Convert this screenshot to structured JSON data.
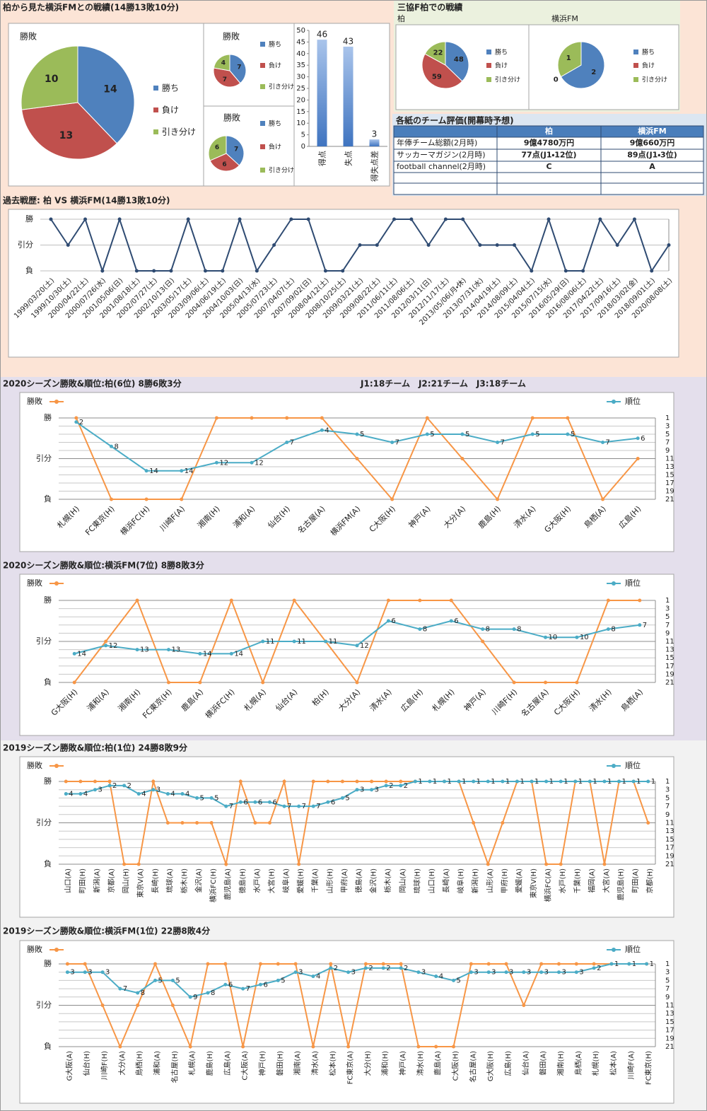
{
  "headings": {
    "record": "柏から見た横浜FMとの戦績(14勝13敗10分)",
    "venue": "三協F柏での戦績",
    "venue_labels": [
      "柏",
      "横浜FM"
    ]
  },
  "table": {
    "title": "各紙のチーム評価(開幕時予想)",
    "header": [
      "柏",
      "横浜FM"
    ],
    "rows": [
      [
        "年俸チーム総額(2月時)",
        "9億4780万円",
        "9億660万円"
      ],
      [
        "サッカーマガジン(2月時)",
        "77点(J1・12位)",
        "89点(J1・3位)"
      ],
      [
        "football channel(2月時)",
        "C",
        "A"
      ]
    ]
  },
  "chart_data": [
    {
      "type": "pie",
      "title": "勝敗",
      "categories": [
        "勝ち",
        "負け",
        "引き分け"
      ],
      "values": [
        14,
        13,
        10
      ],
      "colors": [
        "#4f81bd",
        "#c0504d",
        "#9bbb59"
      ]
    },
    {
      "type": "pie",
      "title": "勝敗",
      "categories": [
        "勝ち",
        "負け",
        "引き分け"
      ],
      "values": [
        7,
        7,
        4
      ],
      "colors": [
        "#4f81bd",
        "#c0504d",
        "#9bbb59"
      ]
    },
    {
      "type": "pie",
      "title": "勝敗",
      "categories": [
        "勝ち",
        "負け",
        "引き分け"
      ],
      "values": [
        7,
        6,
        6
      ],
      "colors": [
        "#4f81bd",
        "#c0504d",
        "#9bbb59"
      ]
    },
    {
      "type": "bar",
      "categories": [
        "得点",
        "失点",
        "得失点差"
      ],
      "values": [
        46,
        43,
        3
      ],
      "color": "#4f81bd",
      "ylim": [
        0,
        50
      ],
      "yticks": [
        0,
        5,
        10,
        15,
        20,
        25,
        30,
        35,
        40,
        45,
        50
      ]
    },
    {
      "type": "pie",
      "categories": [
        "勝ち",
        "負け",
        "引き分け"
      ],
      "values": [
        48,
        59,
        22
      ],
      "colors": [
        "#4f81bd",
        "#c0504d",
        "#9bbb59"
      ]
    },
    {
      "type": "pie",
      "categories": [
        "勝ち",
        "負け",
        "引き分け"
      ],
      "values": [
        2,
        0,
        1
      ],
      "colors": [
        "#4f81bd",
        "#c0504d",
        "#9bbb59"
      ]
    },
    {
      "type": "line",
      "title": "過去戦歴: 柏 VS 横浜FM(14勝13敗10分)",
      "categories": [
        "1999/03/20(土)",
        "1999/10/30(土)",
        "2000/04/22(土)",
        "2000/07/26(水)",
        "2001/05/06(日)",
        "2001/08/18(土)",
        "2002/07/27(土)",
        "2002/10/13(日)",
        "2003/05/17(土)",
        "2003/09/06(土)",
        "2004/06/19(土)",
        "2004/10/03(日)",
        "2005/04/13(水)",
        "2005/07/23(土)",
        "2007/04/07(土)",
        "2007/09/02(日)",
        "2008/04/12(土)",
        "2008/10/25(土)",
        "2009/03/21(土)",
        "2009/08/22(土)",
        "2011/06/11(土)",
        "2011/08/06(土)",
        "2012/03/11(日)",
        "2012/11/17(土)",
        "2013/05/06(月・休)",
        "2013/07/31(水)",
        "2014/04/19(土)",
        "2014/08/09(土)",
        "2015/04/04(土)",
        "2015/07/15(水)",
        "2016/05/29(日)",
        "2016/08/06(土)",
        "2017/04/22(土)",
        "2017/09/16(土)",
        "2018/03/02(金)",
        "2018/09/01(土)",
        "2020/08/08(土)"
      ],
      "values": [
        1,
        0,
        1,
        -1,
        1,
        -1,
        -1,
        -1,
        1,
        -1,
        -1,
        1,
        -1,
        0,
        1,
        1,
        -1,
        -1,
        0,
        0,
        1,
        1,
        0,
        1,
        1,
        0,
        0,
        0,
        -1,
        1,
        -1,
        -1,
        1,
        0,
        1,
        -1,
        0
      ],
      "color": "#2f4b72",
      "ylim": [
        -1,
        1
      ],
      "yticks": [
        {
          "value": -1,
          "label": "負"
        },
        {
          "value": 0,
          "label": "引分"
        },
        {
          "value": 1,
          "label": "勝"
        }
      ],
      "grid": true
    },
    {
      "type": "line",
      "title": "2020シーズン勝敗&順位:柏(6位) 8勝6敗3分",
      "annotation": "J1:18チーム　J2:21チーム　J3:18チーム",
      "categories": [
        "札幌(H)",
        "FC東京(H)",
        "横浜FC(H)",
        "川崎F(A)",
        "湘南(H)",
        "浦和(A)",
        "仙台(H)",
        "名古屋(A)",
        "横浜FM(A)",
        "C大阪(H)",
        "神戸(A)",
        "大分(A)",
        "鹿島(H)",
        "清水(A)",
        "G大阪(H)",
        "鳥栖(A)",
        "広島(H)"
      ],
      "series": [
        {
          "name": "勝敗",
          "color": "#f79646",
          "values": [
            1,
            -1,
            -1,
            -1,
            1,
            1,
            1,
            1,
            0,
            -1,
            1,
            0,
            -1,
            1,
            1,
            -1,
            0
          ]
        },
        {
          "name": "順位",
          "color": "#4bacc6",
          "axis": "y2",
          "values": [
            2,
            8,
            14,
            14,
            12,
            12,
            7,
            4,
            5,
            7,
            5,
            5,
            7,
            5,
            5,
            7,
            6
          ]
        }
      ],
      "ylim": [
        -1,
        1
      ],
      "yticks": [
        {
          "value": -1,
          "label": "負"
        },
        {
          "value": 0,
          "label": "引分"
        },
        {
          "value": 1,
          "label": "勝"
        }
      ],
      "y2lim": [
        21,
        1
      ],
      "y2ticks": [
        1,
        3,
        5,
        7,
        9,
        11,
        13,
        15,
        17,
        19,
        21
      ],
      "grid": true,
      "legend": "top"
    },
    {
      "type": "line",
      "title": "2020シーズン勝敗&順位:横浜FM(7位) 8勝8敗3分",
      "categories": [
        "G大阪(H)",
        "浦和(A)",
        "湘南(H)",
        "FC東京(H)",
        "鹿島(A)",
        "横浜FC(H)",
        "札幌(A)",
        "仙台(A)",
        "柏(H)",
        "大分(A)",
        "清水(A)",
        "広島(H)",
        "札幌(H)",
        "神戸(A)",
        "川崎F(H)",
        "名古屋(A)",
        "C大阪(H)",
        "清水(H)",
        "鳥栖(A)"
      ],
      "series": [
        {
          "name": "勝敗",
          "color": "#f79646",
          "values": [
            -1,
            0,
            1,
            -1,
            -1,
            1,
            -1,
            1,
            0,
            -1,
            1,
            1,
            1,
            0,
            -1,
            -1,
            -1,
            1,
            1
          ]
        },
        {
          "name": "順位",
          "color": "#4bacc6",
          "axis": "y2",
          "values": [
            14,
            12,
            13,
            13,
            14,
            14,
            11,
            11,
            11,
            12,
            6,
            8,
            6,
            8,
            8,
            10,
            10,
            8,
            7
          ]
        }
      ],
      "ylim": [
        -1,
        1
      ],
      "yticks": [
        {
          "value": -1,
          "label": "負"
        },
        {
          "value": 0,
          "label": "引分"
        },
        {
          "value": 1,
          "label": "勝"
        }
      ],
      "y2lim": [
        21,
        1
      ],
      "y2ticks": [
        1,
        3,
        5,
        7,
        9,
        11,
        13,
        15,
        17,
        19,
        21
      ],
      "grid": true,
      "legend": "top"
    },
    {
      "type": "line",
      "title": "2019シーズン勝敗&順位:柏(1位) 24勝8敗9分",
      "categories": [
        "山口(A)",
        "町田(H)",
        "新潟(A)",
        "京都(A)",
        "岡山(H)",
        "東京V(A)",
        "長崎(H)",
        "琉球(A)",
        "栃木(H)",
        "金沢(A)",
        "横浜FC(H)",
        "鹿児島(A)",
        "徳島(H)",
        "水戸(A)",
        "大宮(H)",
        "岐阜(A)",
        "愛媛(H)",
        "千葉(A)",
        "山形(H)",
        "甲府(A)",
        "徳島(A)",
        "金沢(H)",
        "栃木(A)",
        "岡山(A)",
        "琉球(H)",
        "山口(H)",
        "長崎(A)",
        "岐阜(H)",
        "新潟(H)",
        "山形(A)",
        "甲府(H)",
        "愛媛(A)",
        "東京V(H)",
        "横浜FC(A)",
        "水戸(H)",
        "千葉(H)",
        "福岡(A)",
        "大宮(A)",
        "鹿児島(H)",
        "町田(A)",
        "京都(H)"
      ],
      "series": [
        {
          "name": "勝敗",
          "color": "#f79646",
          "values": [
            1,
            1,
            1,
            1,
            -1,
            -1,
            1,
            0,
            0,
            0,
            0,
            -1,
            1,
            0,
            0,
            1,
            -1,
            1,
            1,
            1,
            1,
            1,
            1,
            1,
            1,
            1,
            1,
            1,
            0,
            -1,
            0,
            1,
            1,
            -1,
            -1,
            1,
            1,
            -1,
            1,
            1,
            0
          ]
        },
        {
          "name": "順位",
          "color": "#4bacc6",
          "axis": "y2",
          "values": [
            4,
            4,
            3,
            2,
            2,
            4,
            3,
            4,
            4,
            5,
            5,
            7,
            6,
            6,
            6,
            7,
            7,
            7,
            6,
            5,
            3,
            3,
            2,
            2,
            1,
            1,
            1,
            1,
            1,
            1,
            1,
            1,
            1,
            1,
            1,
            1,
            1,
            1,
            1,
            1,
            1
          ]
        }
      ],
      "ylim": [
        -1,
        1
      ],
      "yticks": [
        {
          "value": -1,
          "label": "負"
        },
        {
          "value": 0,
          "label": "引分"
        },
        {
          "value": 1,
          "label": "勝"
        }
      ],
      "y2lim": [
        21,
        1
      ],
      "y2ticks": [
        1,
        3,
        5,
        7,
        9,
        11,
        13,
        15,
        17,
        19,
        21
      ],
      "grid": true,
      "legend": "top"
    },
    {
      "type": "line",
      "title": "2019シーズン勝敗&順位:横浜FM(1位) 22勝8敗4分",
      "categories": [
        "G大阪(A)",
        "仙台(H)",
        "川崎F(H)",
        "大分(A)",
        "鳥栖(H)",
        "浦和(A)",
        "名古屋(H)",
        "札幌(A)",
        "鹿島(H)",
        "広島(A)",
        "C大阪(A)",
        "神戸(H)",
        "磐田(H)",
        "湘南(A)",
        "清水(A)",
        "松本(H)",
        "FC東京(A)",
        "大分(H)",
        "浦和(H)",
        "神戸(A)",
        "清水(H)",
        "鹿島(A)",
        "C大阪(H)",
        "名古屋(A)",
        "G大阪(H)",
        "広島(H)",
        "仙台(A)",
        "磐田(A)",
        "湘南(H)",
        "鳥栖(A)",
        "札幌(H)",
        "松本(A)",
        "川崎F(A)",
        "FC東京(H)"
      ],
      "series": [
        {
          "name": "勝敗",
          "color": "#f79646",
          "values": [
            1,
            1,
            0,
            -1,
            0,
            1,
            0,
            -1,
            1,
            1,
            -1,
            1,
            1,
            1,
            -1,
            1,
            -1,
            1,
            1,
            1,
            -1,
            -1,
            -1,
            1,
            1,
            1,
            0,
            1,
            1,
            1,
            1,
            1,
            1,
            1
          ]
        },
        {
          "name": "順位",
          "color": "#4bacc6",
          "axis": "y2",
          "values": [
            3,
            3,
            3,
            7,
            8,
            5,
            5,
            9,
            8,
            6,
            7,
            6,
            5,
            3,
            4,
            2,
            3,
            2,
            2,
            2,
            3,
            4,
            5,
            3,
            3,
            3,
            3,
            3,
            3,
            3,
            2,
            1,
            1,
            1
          ]
        }
      ],
      "ylim": [
        -1,
        1
      ],
      "yticks": [
        {
          "value": -1,
          "label": "負"
        },
        {
          "value": 0,
          "label": "引分"
        },
        {
          "value": 1,
          "label": "勝"
        }
      ],
      "y2lim": [
        21,
        1
      ],
      "y2ticks": [
        1,
        3,
        5,
        7,
        9,
        11,
        13,
        15,
        17,
        19,
        21
      ],
      "grid": true,
      "legend": "top"
    }
  ]
}
